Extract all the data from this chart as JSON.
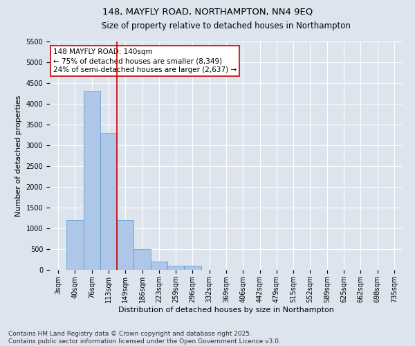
{
  "title": "148, MAYFLY ROAD, NORTHAMPTON, NN4 9EQ",
  "subtitle": "Size of property relative to detached houses in Northampton",
  "xlabel": "Distribution of detached houses by size in Northampton",
  "ylabel": "Number of detached properties",
  "bar_categories": [
    "3sqm",
    "40sqm",
    "76sqm",
    "113sqm",
    "149sqm",
    "186sqm",
    "223sqm",
    "259sqm",
    "296sqm",
    "332sqm",
    "369sqm",
    "406sqm",
    "442sqm",
    "479sqm",
    "515sqm",
    "552sqm",
    "589sqm",
    "625sqm",
    "662sqm",
    "698sqm",
    "735sqm"
  ],
  "bar_values": [
    0,
    1200,
    4300,
    3300,
    1200,
    500,
    200,
    100,
    100,
    0,
    0,
    0,
    0,
    0,
    0,
    0,
    0,
    0,
    0,
    0,
    0
  ],
  "bar_color": "#aec6e8",
  "bar_edge_color": "#5599cc",
  "ylim": [
    0,
    5500
  ],
  "yticks": [
    0,
    500,
    1000,
    1500,
    2000,
    2500,
    3000,
    3500,
    4000,
    4500,
    5000,
    5500
  ],
  "vline_x": 3.5,
  "vline_color": "#cc0000",
  "annotation_text": "148 MAYFLY ROAD: 140sqm\n← 75% of detached houses are smaller (8,349)\n24% of semi-detached houses are larger (2,637) →",
  "annotation_box_color": "#ffffff",
  "annotation_box_edge": "#cc0000",
  "footer_line1": "Contains HM Land Registry data © Crown copyright and database right 2025.",
  "footer_line2": "Contains public sector information licensed under the Open Government Licence v3.0.",
  "bg_color": "#dde4ed",
  "plot_bg_color": "#dde4ed",
  "title_fontsize": 9.5,
  "subtitle_fontsize": 8.5,
  "axis_label_fontsize": 8,
  "tick_fontsize": 7,
  "annotation_fontsize": 7.5,
  "footer_fontsize": 6.5
}
